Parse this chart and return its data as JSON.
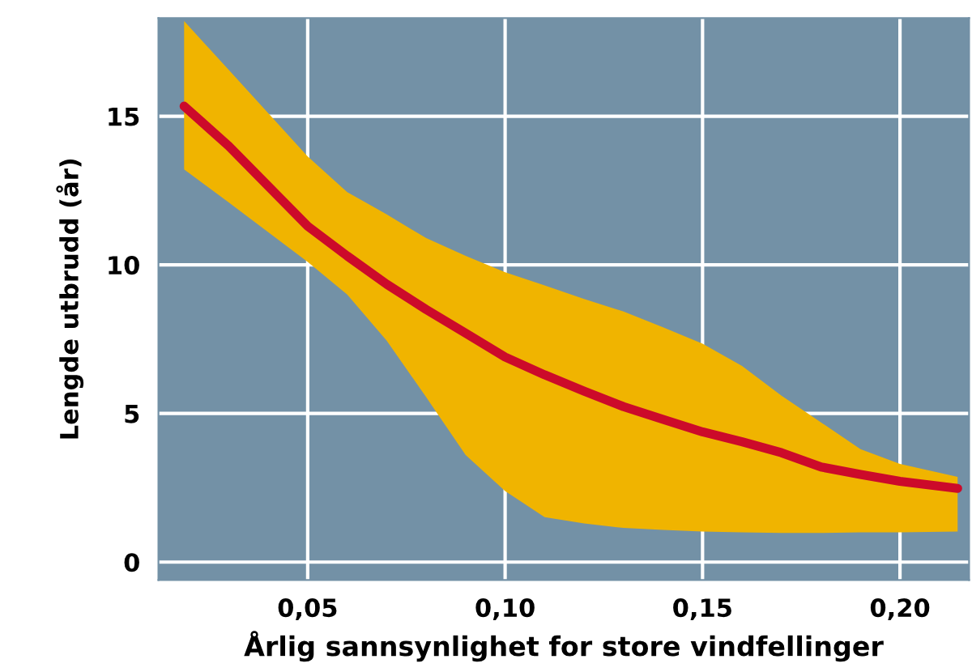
{
  "chart_data": {
    "type": "line",
    "xlabel": "Årlig sannsynlighet for store vindfellinger",
    "ylabel": "Lengde utbrudd (år)",
    "x": [
      0.0187,
      0.03,
      0.05,
      0.06,
      0.07,
      0.08,
      0.09,
      0.1,
      0.11,
      0.12,
      0.13,
      0.14,
      0.15,
      0.16,
      0.17,
      0.18,
      0.19,
      0.2,
      0.2146
    ],
    "series": [
      {
        "color": "#cc0a2a",
        "values": [
          15.34,
          14.0,
          11.3,
          10.3,
          9.35,
          8.5,
          7.7,
          6.9,
          6.3,
          5.75,
          5.23,
          4.8,
          4.38,
          4.05,
          3.68,
          3.2,
          2.95,
          2.72,
          2.48
        ],
        "upper": [
          18.2,
          16.56,
          13.65,
          12.45,
          11.7,
          10.9,
          10.3,
          9.75,
          9.31,
          8.85,
          8.43,
          7.9,
          7.35,
          6.6,
          5.6,
          4.7,
          3.8,
          3.3,
          2.87
        ],
        "lower": [
          13.21,
          12.1,
          10.1,
          9.0,
          7.45,
          5.55,
          3.6,
          2.39,
          1.51,
          1.3,
          1.15,
          1.08,
          1.03,
          1.0,
          0.98,
          0.98,
          1.0,
          1.0,
          1.03
        ]
      }
    ],
    "xlim": [
      0.0122,
      0.2175
    ],
    "ylim": [
      -0.6,
      18.3
    ],
    "xticks": [
      {
        "value": 0.05,
        "label": "0,05"
      },
      {
        "value": 0.1,
        "label": "0,10"
      },
      {
        "value": 0.15,
        "label": "0,15"
      },
      {
        "value": 0.2,
        "label": "0,20"
      }
    ],
    "yticks": [
      0,
      5,
      10,
      15
    ],
    "grid": true,
    "marker": "none",
    "line_style": "solid"
  }
}
